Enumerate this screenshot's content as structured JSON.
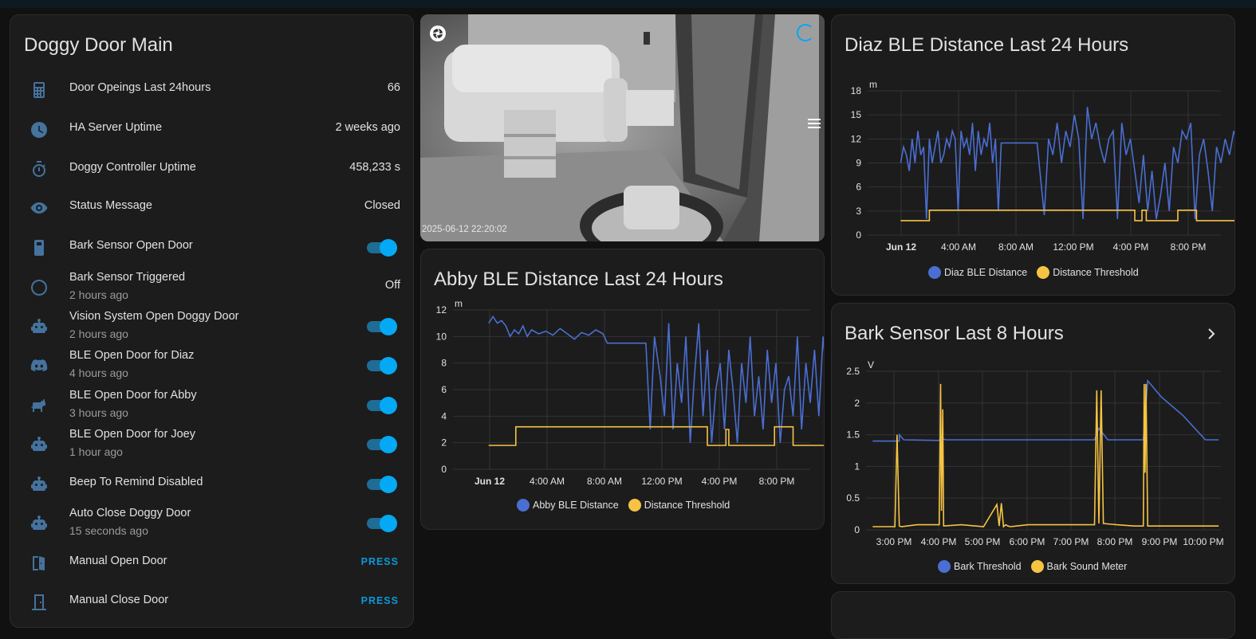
{
  "entities_card": {
    "title": "Doggy Door Main",
    "rows": [
      {
        "name": "Door Opeings Last 24hours",
        "value": "66",
        "icon": "calculator-icon"
      },
      {
        "name": "HA Server Uptime",
        "value": "2 weeks ago",
        "icon": "clock-icon"
      },
      {
        "name": "Doggy Controller Uptime",
        "value": "458,233 s",
        "icon": "timer-icon"
      },
      {
        "name": "Status Message",
        "value": "Closed",
        "icon": "eye-icon"
      },
      {
        "name": "Bark Sensor Open Door",
        "toggle": true,
        "icon": "remote-icon"
      },
      {
        "name": "Bark Sensor Triggered",
        "secondary": "2 hours ago",
        "value": "Off",
        "icon": "circle-outline-icon"
      },
      {
        "name": "Vision System Open Doggy Door",
        "secondary": "2 hours ago",
        "toggle": true,
        "icon": "robot-icon"
      },
      {
        "name": "BLE Open Door for Diaz",
        "secondary": "4 hours ago",
        "toggle": true,
        "icon": "discord-icon"
      },
      {
        "name": "BLE Open Door for Abby",
        "secondary": "3 hours ago",
        "toggle": true,
        "icon": "dog-icon"
      },
      {
        "name": "BLE Open Door for Joey",
        "secondary": "1 hour ago",
        "toggle": true,
        "icon": "robot-icon"
      },
      {
        "name": "Beep To Remind Disabled",
        "toggle": true,
        "icon": "robot-icon"
      },
      {
        "name": "Auto Close Doggy Door",
        "secondary": "15 seconds ago",
        "toggle": true,
        "icon": "robot-icon"
      },
      {
        "name": "Manual Open Door",
        "button": "PRESS",
        "icon": "door-open-icon"
      },
      {
        "name": "Manual Close Door",
        "button": "PRESS",
        "icon": "door-closed-icon"
      }
    ]
  },
  "camera": {
    "timestamp": "2025-06-12 22:20:02",
    "icons": [
      "camera-iris-icon",
      "loading-circle-icon",
      "menu-icon"
    ]
  },
  "colors": {
    "accent": "#03a9f4",
    "series_blue": "#4a6ed1",
    "series_yellow": "#f6c343",
    "icon": "#44739e"
  },
  "chart_data": [
    {
      "id": "diaz",
      "type": "line",
      "title": "Diaz BLE Distance Last 24 Hours",
      "unit": "m",
      "ylim": [
        0,
        18
      ],
      "yticks": [
        "0",
        "3",
        "6",
        "9",
        "12",
        "15",
        "18"
      ],
      "xticks": [
        "Jun 12",
        "4:00 AM",
        "8:00 AM",
        "12:00 PM",
        "4:00 PM",
        "8:00 PM"
      ],
      "grid": true,
      "legend": "bottom",
      "x_hours": [
        0,
        24
      ],
      "series": [
        {
          "name": "Diaz BLE Distance",
          "color": "#4a6ed1",
          "x": [
            0,
            0.2,
            0.4,
            0.6,
            0.8,
            1.0,
            1.2,
            1.4,
            1.6,
            1.8,
            2.0,
            2.2,
            2.4,
            2.6,
            2.8,
            3.0,
            3.2,
            3.4,
            3.6,
            3.8,
            4.0,
            4.2,
            4.4,
            4.6,
            4.8,
            5.0,
            5.2,
            5.4,
            5.6,
            5.8,
            6.0,
            6.2,
            6.4,
            6.6,
            6.8,
            7.0,
            7.5,
            8.0,
            8.5,
            9.0,
            9.5,
            10.0,
            10.3,
            10.6,
            10.9,
            11.2,
            11.5,
            11.8,
            12.1,
            12.4,
            12.7,
            13.0,
            13.3,
            13.6,
            13.9,
            14.2,
            14.5,
            14.8,
            15.1,
            15.4,
            15.7,
            16.0,
            16.3,
            16.6,
            16.9,
            17.2,
            17.5,
            17.8,
            18.1,
            18.4,
            18.7,
            19.0,
            19.3,
            19.6,
            19.9,
            20.2,
            20.5,
            20.8,
            21.1,
            21.4,
            21.7,
            22.0,
            22.3,
            22.6,
            22.9,
            23.2,
            23.5,
            23.8,
            24.0
          ],
          "y": [
            9,
            11,
            10,
            8,
            12,
            9,
            13,
            10,
            11,
            2,
            12,
            9,
            11,
            13,
            9,
            10,
            12,
            11,
            13,
            12,
            3,
            13,
            11,
            12,
            10,
            14,
            8,
            13,
            10,
            12,
            11,
            14,
            9,
            12,
            3,
            11.5,
            11.5,
            11.5,
            11.5,
            11.5,
            11.5,
            2.5,
            12,
            10,
            14,
            9,
            13,
            11,
            15,
            12,
            2,
            16,
            12,
            14,
            11,
            9,
            12,
            13,
            2,
            14,
            10,
            12,
            8,
            4,
            10,
            3,
            8,
            2,
            5,
            9,
            3,
            11,
            9,
            13,
            12,
            14,
            2,
            10,
            12,
            8,
            3,
            11,
            9,
            12,
            10,
            13,
            11,
            12,
            13
          ]
        },
        {
          "name": "Distance Threshold",
          "color": "#f6c343",
          "x": [
            0,
            2.0,
            2.0,
            16.3,
            16.3,
            16.8,
            16.8,
            17.1,
            17.1,
            19.3,
            19.3,
            20.6,
            20.6,
            24.0
          ],
          "y": [
            1.8,
            1.8,
            3.1,
            3.1,
            1.8,
            1.8,
            3.1,
            3.1,
            1.8,
            1.8,
            3.1,
            3.1,
            1.8,
            1.8
          ]
        }
      ]
    },
    {
      "id": "abby",
      "type": "line",
      "title": "Abby BLE Distance Last 24 Hours",
      "unit": "m",
      "ylim": [
        0,
        12
      ],
      "yticks": [
        "0",
        "2",
        "4",
        "6",
        "8",
        "10",
        "12"
      ],
      "xticks": [
        "Jun 12",
        "4:00 AM",
        "8:00 AM",
        "12:00 PM",
        "4:00 PM",
        "8:00 PM"
      ],
      "grid": true,
      "legend": "bottom",
      "series": [
        {
          "name": "Abby BLE Distance",
          "color": "#4a6ed1",
          "x": [
            0,
            0.3,
            0.6,
            0.9,
            1.2,
            1.5,
            1.8,
            2.1,
            2.4,
            2.7,
            3.0,
            3.5,
            4.0,
            4.5,
            5.0,
            5.5,
            6.0,
            6.5,
            7.0,
            7.5,
            8.0,
            8.3,
            8.6,
            9.0,
            10.0,
            11.0,
            11.3,
            11.6,
            12.0,
            12.3,
            12.6,
            12.9,
            13.2,
            13.5,
            13.8,
            14.1,
            14.4,
            14.7,
            15.0,
            15.3,
            15.6,
            15.9,
            16.2,
            16.5,
            16.8,
            17.1,
            17.4,
            17.7,
            18.0,
            18.3,
            18.6,
            18.9,
            19.2,
            19.5,
            19.8,
            20.1,
            20.4,
            20.7,
            21.0,
            21.3,
            21.6,
            21.9,
            22.2,
            22.5,
            22.8,
            23.1,
            23.4,
            23.7,
            24.0
          ],
          "y": [
            11,
            11.5,
            11,
            11.2,
            10.8,
            10,
            10.5,
            10.2,
            10.8,
            10,
            10.5,
            10.2,
            10.4,
            10.1,
            10.6,
            10.2,
            9.8,
            10.3,
            10.1,
            10.5,
            10.2,
            9.5,
            9.5,
            9.5,
            9.5,
            9.5,
            3,
            10,
            7,
            4,
            11,
            3,
            8,
            5,
            10,
            2,
            7,
            11,
            4,
            9,
            2,
            6,
            8,
            3,
            9,
            6,
            2,
            8,
            5,
            10,
            4,
            7,
            3,
            9,
            5,
            8,
            2,
            6,
            7,
            4,
            10,
            3,
            8,
            5,
            9,
            4,
            10,
            6,
            10
          ]
        },
        {
          "name": "Distance Threshold",
          "color": "#f6c343",
          "x": [
            0,
            1.9,
            1.9,
            15.3,
            15.3,
            16.6,
            16.6,
            16.8,
            16.8,
            20.0,
            20.0,
            21.3,
            21.3,
            24.0
          ],
          "y": [
            1.8,
            1.8,
            3.2,
            3.2,
            1.8,
            1.8,
            3.0,
            3.0,
            1.8,
            1.8,
            3.2,
            3.2,
            1.8,
            1.8
          ]
        }
      ]
    },
    {
      "id": "bark",
      "type": "line",
      "title": "Bark Sensor Last 8 Hours",
      "unit": "V",
      "ylim": [
        0,
        2.5
      ],
      "yticks": [
        "0",
        "0.5",
        "1",
        "1.5",
        "2",
        "2.5"
      ],
      "xticks": [
        "3:00 PM",
        "4:00 PM",
        "5:00 PM",
        "6:00 PM",
        "7:00 PM",
        "8:00 PM",
        "9:00 PM",
        "10:00 PM"
      ],
      "grid": true,
      "legend": "bottom",
      "series": [
        {
          "name": "Bark Threshold",
          "color": "#4a6ed1",
          "x": [
            14.5,
            15.1,
            15.1,
            15.2,
            16.0,
            16.05,
            16.1,
            16.15,
            16.2,
            19.5,
            19.6,
            19.8,
            20.1,
            20.6,
            20.7,
            21.0,
            21.5,
            22.0,
            22.3
          ],
          "y": [
            1.4,
            1.4,
            1.5,
            1.42,
            1.41,
            1.47,
            1.43,
            1.42,
            1.42,
            1.42,
            1.6,
            1.42,
            1.42,
            1.42,
            2.35,
            2.1,
            1.8,
            1.42,
            1.42
          ]
        },
        {
          "name": "Bark Sound Meter",
          "color": "#f6c343",
          "x": [
            14.5,
            15.0,
            15.05,
            15.1,
            15.15,
            15.5,
            16.0,
            16.03,
            16.05,
            16.08,
            16.1,
            16.5,
            17.0,
            17.3,
            17.35,
            17.4,
            17.45,
            17.5,
            17.55,
            17.6,
            18.0,
            19.5,
            19.55,
            19.6,
            19.65,
            19.7,
            20.0,
            20.4,
            20.6,
            20.62,
            20.64,
            20.66,
            20.7,
            21.0,
            22.3
          ],
          "y": [
            0.05,
            0.05,
            1.5,
            0.06,
            0.05,
            0.08,
            0.08,
            2.3,
            0.3,
            1.9,
            0.06,
            0.08,
            0.05,
            0.4,
            0.06,
            0.42,
            0.05,
            0.08,
            0.06,
            0.05,
            0.08,
            0.08,
            2.2,
            0.1,
            2.2,
            0.1,
            0.08,
            0.06,
            0.06,
            2.3,
            0.9,
            2.3,
            0.06,
            0.06,
            0.06
          ]
        }
      ]
    }
  ],
  "bottom_card": {}
}
